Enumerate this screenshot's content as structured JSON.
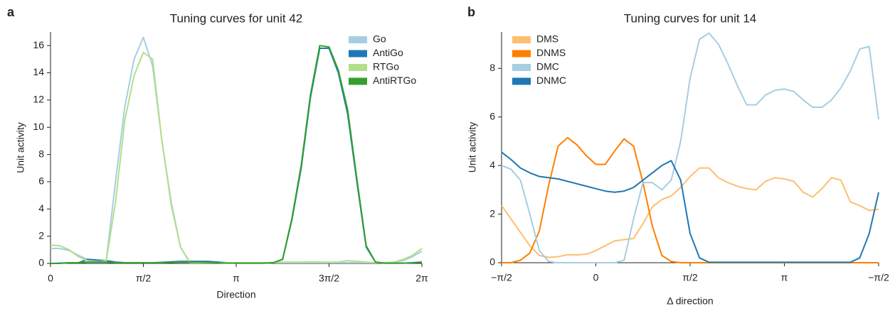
{
  "chart_data": [
    {
      "type": "line",
      "panel": "a",
      "title": "Tuning curves for unit 42",
      "xlabel": "Direction",
      "ylabel": "Unit activity",
      "x": [
        0,
        0.1571,
        0.3142,
        0.4712,
        0.6283,
        0.7854,
        0.9425,
        1.0996,
        1.2566,
        1.4137,
        1.5708,
        1.7279,
        1.885,
        2.042,
        2.1991,
        2.3562,
        2.5133,
        2.6704,
        2.8274,
        2.9845,
        3.1416,
        3.2987,
        3.4558,
        3.6128,
        3.7699,
        3.927,
        4.0841,
        4.2412,
        4.3982,
        4.5553,
        4.7124,
        4.8695,
        5.0265,
        5.1836,
        5.3407,
        5.4978,
        5.6549,
        5.8119,
        5.969,
        6.1261,
        6.2832
      ],
      "series": [
        {
          "name": "Go",
          "color": "#a6cee3",
          "values": [
            1.1,
            1.1,
            0.95,
            0.6,
            0.3,
            0.15,
            0.2,
            6,
            11.5,
            15,
            16.6,
            14.5,
            9,
            4.5,
            1.2,
            0.1,
            0.08,
            0.08,
            0.05,
            0.05,
            0.05,
            0.05,
            0.05,
            0.05,
            0.05,
            0.05,
            0.05,
            0.05,
            0.05,
            0.05,
            0.05,
            0.05,
            0.05,
            0.05,
            0.05,
            0.05,
            0.05,
            0.1,
            0.2,
            0.5,
            0.9
          ]
        },
        {
          "name": "AntiGo",
          "color": "#1f78b4",
          "values": [
            0,
            0.02,
            0.05,
            0.05,
            0.3,
            0.25,
            0.2,
            0.1,
            0.05,
            0.05,
            0.05,
            0.05,
            0.08,
            0.12,
            0.15,
            0.15,
            0.15,
            0.15,
            0.1,
            0.05,
            0.02,
            0.02,
            0.02,
            0.02,
            0.05,
            0.3,
            3.2,
            7,
            12.2,
            15.8,
            15.8,
            14,
            11,
            6,
            1.2,
            0.1,
            0.02,
            0.02,
            0.02,
            0.05,
            0.1
          ]
        },
        {
          "name": "RTGo",
          "color": "#b2df8a",
          "values": [
            1.35,
            1.3,
            1.0,
            0.5,
            0.2,
            0.1,
            0.2,
            4.5,
            10.5,
            13.8,
            15.5,
            15,
            9,
            4.3,
            1.2,
            0.05,
            0.05,
            0.05,
            0.05,
            0.05,
            0.05,
            0.05,
            0.05,
            0.05,
            0.08,
            0.1,
            0.1,
            0.1,
            0.12,
            0.1,
            0.1,
            0.1,
            0.2,
            0.15,
            0.1,
            0.05,
            0.05,
            0.1,
            0.3,
            0.6,
            1.1
          ]
        },
        {
          "name": "AntiRTGo",
          "color": "#33a02c",
          "values": [
            0,
            0,
            0.05,
            0.05,
            0.1,
            0.1,
            0.1,
            0.05,
            0.05,
            0.05,
            0.05,
            0.05,
            0.05,
            0.08,
            0.1,
            0.1,
            0.1,
            0.08,
            0.05,
            0.02,
            0.02,
            0.02,
            0.02,
            0.02,
            0.05,
            0.3,
            3.3,
            7.2,
            12.4,
            16,
            15.9,
            14.2,
            11.3,
            6.2,
            1.3,
            0.1,
            0.02,
            0.02,
            0.02,
            0.05,
            0.1
          ]
        }
      ],
      "xlim": [
        0,
        6.2832
      ],
      "xticks": [
        0,
        {
          "value": 1.5708,
          "label": "π/2"
        },
        {
          "value": 3.1416,
          "label": "π"
        },
        {
          "value": 4.7124,
          "label": "3π/2"
        },
        {
          "value": 6.2832,
          "label": "2π"
        }
      ],
      "ylim": [
        0,
        17
      ],
      "yticks": [
        0,
        2,
        4,
        6,
        8,
        10,
        12,
        14,
        16
      ],
      "legend": "upper right"
    },
    {
      "type": "line",
      "panel": "b",
      "title": "Tuning curves for unit 14",
      "xlabel": "Δ direction",
      "ylabel": "Unit activity",
      "x": [
        -1.5708,
        -1.4137,
        -1.2566,
        -1.0996,
        -0.9425,
        -0.7854,
        -0.6283,
        -0.4712,
        -0.3142,
        -0.1571,
        0,
        0.1571,
        0.3142,
        0.4712,
        0.6283,
        0.7854,
        0.9425,
        1.0996,
        1.2566,
        1.4137,
        1.5708,
        1.7279,
        1.885,
        2.042,
        2.1991,
        2.3562,
        2.5133,
        2.6704,
        2.8274,
        2.9845,
        3.1416,
        3.2987,
        3.4558,
        3.6128,
        3.7699,
        3.927,
        4.0841,
        4.2412,
        4.3982,
        4.5553,
        4.7124
      ],
      "series": [
        {
          "name": "DMS",
          "color": "#fdbf6f",
          "values": [
            2.35,
            1.8,
            1.25,
            0.7,
            0.3,
            0.22,
            0.25,
            0.33,
            0.32,
            0.35,
            0.5,
            0.7,
            0.9,
            0.95,
            1.0,
            1.6,
            2.3,
            2.6,
            2.75,
            3.1,
            3.55,
            3.9,
            3.9,
            3.5,
            3.3,
            3.15,
            3.05,
            3.0,
            3.35,
            3.5,
            3.45,
            3.35,
            2.9,
            2.7,
            3.05,
            3.5,
            3.4,
            2.5,
            2.35,
            2.15,
            2.2
          ]
        },
        {
          "name": "DNMS",
          "color": "#ff7f00",
          "values": [
            0,
            0,
            0.1,
            0.4,
            1.3,
            3.2,
            4.8,
            5.15,
            4.85,
            4.4,
            4.05,
            4.05,
            4.6,
            5.1,
            4.8,
            3.3,
            1.5,
            0.3,
            0.05,
            0,
            0,
            0,
            0,
            0,
            0,
            0,
            0,
            0,
            0,
            0,
            0,
            0,
            0,
            0,
            0,
            0,
            0,
            0,
            0,
            0,
            0
          ]
        },
        {
          "name": "DMC",
          "color": "#a6cee3",
          "values": [
            4.0,
            3.85,
            3.4,
            2.0,
            0.5,
            0.05,
            0,
            0,
            0,
            0,
            0,
            0,
            0,
            0.1,
            1.8,
            3.3,
            3.3,
            3.0,
            3.4,
            5.0,
            7.6,
            9.2,
            9.45,
            9.0,
            8.2,
            7.3,
            6.5,
            6.5,
            6.9,
            7.1,
            7.15,
            7.05,
            6.7,
            6.4,
            6.4,
            6.7,
            7.2,
            7.9,
            8.8,
            8.9,
            5.9
          ]
        },
        {
          "name": "DNMC",
          "color": "#1f78b4",
          "values": [
            4.55,
            4.25,
            3.9,
            3.7,
            3.55,
            3.5,
            3.45,
            3.35,
            3.25,
            3.15,
            3.05,
            2.95,
            2.9,
            2.95,
            3.1,
            3.4,
            3.7,
            4.0,
            4.2,
            3.4,
            1.2,
            0.2,
            0.02,
            0.02,
            0.02,
            0.02,
            0.02,
            0.02,
            0.02,
            0.02,
            0.02,
            0.02,
            0.02,
            0.02,
            0.02,
            0.02,
            0.02,
            0.02,
            0.2,
            1.2,
            2.9
          ]
        }
      ],
      "xlim": [
        -1.5708,
        4.7124
      ],
      "xticks": [
        {
          "value": -1.5708,
          "label": "−π/2"
        },
        0,
        {
          "value": 1.5708,
          "label": "π/2"
        },
        {
          "value": 3.1416,
          "label": "π"
        },
        {
          "value": 4.7124,
          "label": "−π/2"
        }
      ],
      "ylim": [
        0,
        9.5
      ],
      "yticks": [
        0,
        2,
        4,
        6,
        8
      ],
      "legend": "upper left"
    }
  ]
}
